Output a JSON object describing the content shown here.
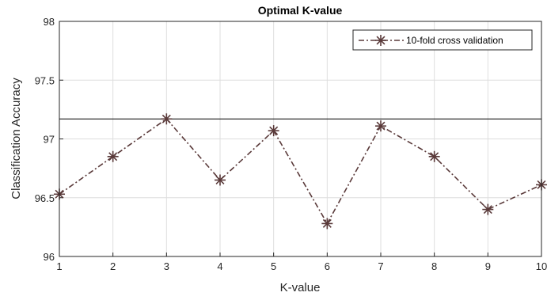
{
  "chart_data": {
    "type": "line",
    "title": "Optimal K-value",
    "xlabel": "K-value",
    "ylabel": "Classification Accuracy",
    "xlim": [
      1,
      10
    ],
    "ylim": [
      96,
      98
    ],
    "xticks": [
      "1",
      "2",
      "3",
      "4",
      "5",
      "6",
      "7",
      "8",
      "9",
      "10"
    ],
    "yticks": [
      "96",
      "96.5",
      "97",
      "97.5",
      "98"
    ],
    "grid": true,
    "legend_position": "top-right",
    "reference_line": 97.17,
    "series": [
      {
        "name": "10-fold cross validation",
        "x": [
          1,
          2,
          3,
          4,
          5,
          6,
          7,
          8,
          9,
          10
        ],
        "y": [
          96.53,
          96.85,
          97.17,
          96.65,
          97.07,
          96.28,
          97.11,
          96.85,
          96.4,
          96.61
        ],
        "color": "#5a3a3a",
        "line_style": "dash-dot",
        "marker": "asterisk"
      }
    ]
  }
}
